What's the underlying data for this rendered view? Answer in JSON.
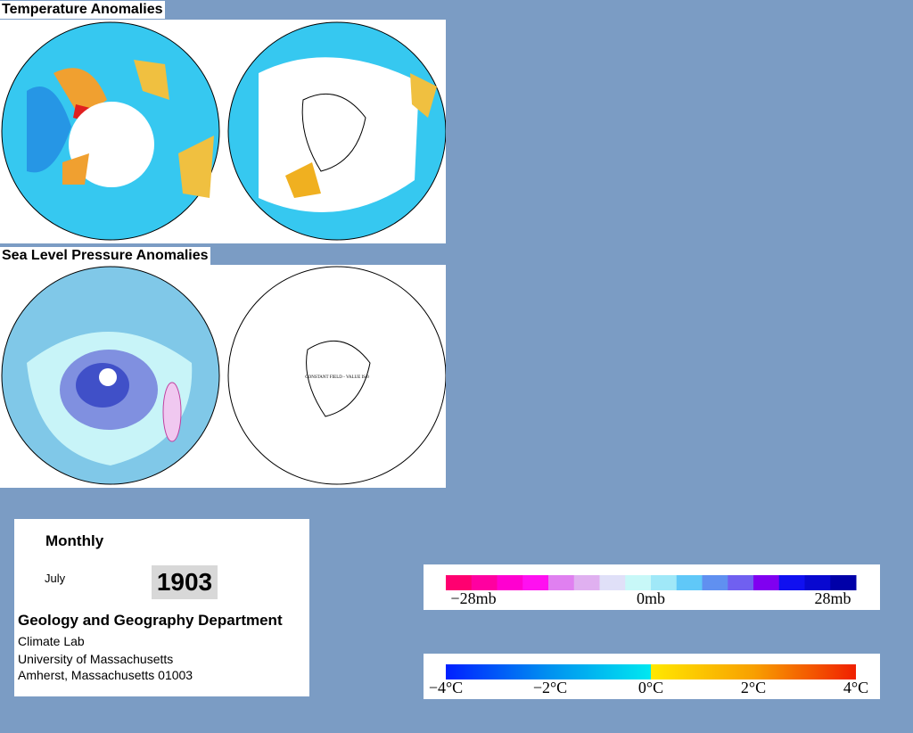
{
  "temperature_panel": {
    "title": "Temperature Anomalies"
  },
  "pressure_panel": {
    "title": "Sea Level Pressure Anomalies",
    "note": "CONSTANT FIELD - VALUE IS 0"
  },
  "info": {
    "period": "Monthly",
    "month": "July",
    "year": "1903",
    "department": "Geology and Geography Department",
    "lines": [
      "Climate Lab",
      "University of Massachusetts",
      "Amherst, Massachusetts 01003"
    ]
  },
  "pressure_legend": {
    "labels": [
      "−28mb",
      "0mb",
      "28mb"
    ]
  },
  "temperature_legend": {
    "labels": [
      "−4°C",
      "−2°C",
      "0°C",
      "2°C",
      "4°C"
    ]
  }
}
